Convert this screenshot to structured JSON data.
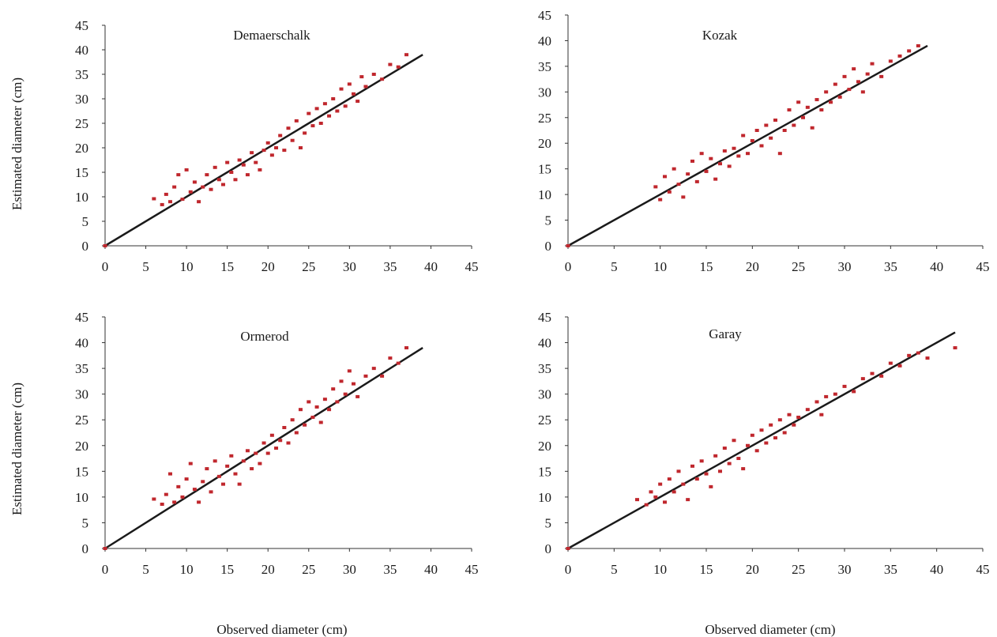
{
  "figure": {
    "y_axis_label": "Estimated diameter (cm)",
    "x_axis_label": "Observed diameter (cm)"
  },
  "chart_data": [
    {
      "type": "scatter",
      "title": "Demaerschalk",
      "xlim": [
        0,
        45
      ],
      "ylim": [
        0,
        45
      ],
      "xticks": [
        0,
        5,
        10,
        15,
        20,
        25,
        30,
        35,
        40,
        45
      ],
      "yticks": [
        0,
        5,
        10,
        15,
        20,
        25,
        30,
        35,
        40,
        45
      ],
      "grid": false,
      "colors": {
        "points": "#c0272d",
        "line": "#1a1a1a"
      },
      "series": [
        {
          "kind": "points",
          "points": [
            [
              0,
              0
            ],
            [
              6.0,
              9.6
            ],
            [
              7.0,
              8.4
            ],
            [
              7.5,
              10.5
            ],
            [
              8.0,
              9.0
            ],
            [
              8.5,
              12.0
            ],
            [
              9.0,
              14.5
            ],
            [
              9.5,
              9.5
            ],
            [
              10.0,
              15.5
            ],
            [
              10.5,
              11.0
            ],
            [
              11.0,
              13.0
            ],
            [
              11.5,
              9.0
            ],
            [
              12.0,
              12.0
            ],
            [
              12.5,
              14.5
            ],
            [
              13.0,
              11.5
            ],
            [
              13.5,
              16.0
            ],
            [
              14.0,
              13.5
            ],
            [
              14.5,
              12.5
            ],
            [
              15.0,
              17.0
            ],
            [
              15.5,
              15.0
            ],
            [
              16.0,
              13.5
            ],
            [
              16.5,
              17.5
            ],
            [
              17.0,
              16.5
            ],
            [
              17.5,
              14.5
            ],
            [
              18.0,
              19.0
            ],
            [
              18.5,
              17.0
            ],
            [
              19.0,
              15.5
            ],
            [
              19.5,
              19.5
            ],
            [
              20.0,
              21.0
            ],
            [
              20.5,
              18.5
            ],
            [
              21.0,
              20.0
            ],
            [
              21.5,
              22.5
            ],
            [
              22.0,
              19.5
            ],
            [
              22.5,
              24.0
            ],
            [
              23.0,
              21.5
            ],
            [
              23.5,
              25.5
            ],
            [
              24.0,
              20.0
            ],
            [
              24.5,
              23.0
            ],
            [
              25.0,
              27.0
            ],
            [
              25.5,
              24.5
            ],
            [
              26.0,
              28.0
            ],
            [
              26.5,
              25.0
            ],
            [
              27.0,
              29.0
            ],
            [
              27.5,
              26.5
            ],
            [
              28.0,
              30.0
            ],
            [
              28.5,
              27.5
            ],
            [
              29.0,
              32.0
            ],
            [
              29.5,
              28.5
            ],
            [
              30.0,
              33.0
            ],
            [
              30.5,
              31.0
            ],
            [
              31.0,
              29.5
            ],
            [
              31.5,
              34.5
            ],
            [
              32.0,
              32.5
            ],
            [
              33.0,
              35.0
            ],
            [
              34.0,
              34.0
            ],
            [
              35.0,
              37.0
            ],
            [
              36.0,
              36.5
            ],
            [
              37.0,
              39.0
            ]
          ]
        },
        {
          "kind": "line",
          "points": [
            [
              0,
              0
            ],
            [
              39,
              39
            ]
          ]
        }
      ]
    },
    {
      "type": "scatter",
      "title": "Kozak",
      "xlim": [
        0,
        45
      ],
      "ylim": [
        0,
        45
      ],
      "xticks": [
        0,
        5,
        10,
        15,
        20,
        25,
        30,
        35,
        40,
        45
      ],
      "yticks": [
        0,
        5,
        10,
        15,
        20,
        25,
        30,
        35,
        40,
        45
      ],
      "grid": false,
      "colors": {
        "points": "#c0272d",
        "line": "#1a1a1a"
      },
      "series": [
        {
          "kind": "points",
          "points": [
            [
              0,
              0
            ],
            [
              9.5,
              11.5
            ],
            [
              10.0,
              9.0
            ],
            [
              10.5,
              13.5
            ],
            [
              11.0,
              10.5
            ],
            [
              11.5,
              15.0
            ],
            [
              12.0,
              12.0
            ],
            [
              12.5,
              9.5
            ],
            [
              13.0,
              14.0
            ],
            [
              13.5,
              16.5
            ],
            [
              14.0,
              12.5
            ],
            [
              14.5,
              18.0
            ],
            [
              15.0,
              14.5
            ],
            [
              15.5,
              17.0
            ],
            [
              16.0,
              13.0
            ],
            [
              16.5,
              16.0
            ],
            [
              17.0,
              18.5
            ],
            [
              17.5,
              15.5
            ],
            [
              18.0,
              19.0
            ],
            [
              18.5,
              17.5
            ],
            [
              19.0,
              21.5
            ],
            [
              19.5,
              18.0
            ],
            [
              20.0,
              20.5
            ],
            [
              20.5,
              22.5
            ],
            [
              21.0,
              19.5
            ],
            [
              21.5,
              23.5
            ],
            [
              22.0,
              21.0
            ],
            [
              22.5,
              24.5
            ],
            [
              23.0,
              18.0
            ],
            [
              23.5,
              22.5
            ],
            [
              24.0,
              26.5
            ],
            [
              24.5,
              23.5
            ],
            [
              25.0,
              28.0
            ],
            [
              25.5,
              25.0
            ],
            [
              26.0,
              27.0
            ],
            [
              26.5,
              23.0
            ],
            [
              27.0,
              28.5
            ],
            [
              27.5,
              26.5
            ],
            [
              28.0,
              30.0
            ],
            [
              28.5,
              28.0
            ],
            [
              29.0,
              31.5
            ],
            [
              29.5,
              29.0
            ],
            [
              30.0,
              33.0
            ],
            [
              30.5,
              30.5
            ],
            [
              31.0,
              34.5
            ],
            [
              31.5,
              32.0
            ],
            [
              32.0,
              30.0
            ],
            [
              32.5,
              33.5
            ],
            [
              33.0,
              35.5
            ],
            [
              34.0,
              33.0
            ],
            [
              35.0,
              36.0
            ],
            [
              36.0,
              37.0
            ],
            [
              37.0,
              38.0
            ],
            [
              38.0,
              39.0
            ]
          ]
        },
        {
          "kind": "line",
          "points": [
            [
              0,
              0
            ],
            [
              39,
              39
            ]
          ]
        }
      ]
    },
    {
      "type": "scatter",
      "title": "Ormerod",
      "xlim": [
        0,
        45
      ],
      "ylim": [
        0,
        45
      ],
      "xticks": [
        0,
        5,
        10,
        15,
        20,
        25,
        30,
        35,
        40,
        45
      ],
      "yticks": [
        0,
        5,
        10,
        15,
        20,
        25,
        30,
        35,
        40,
        45
      ],
      "grid": false,
      "colors": {
        "points": "#c0272d",
        "line": "#1a1a1a"
      },
      "series": [
        {
          "kind": "points",
          "points": [
            [
              0,
              0
            ],
            [
              6.0,
              9.6
            ],
            [
              7.0,
              8.6
            ],
            [
              7.5,
              10.5
            ],
            [
              8.0,
              14.5
            ],
            [
              8.5,
              9.0
            ],
            [
              9.0,
              12.0
            ],
            [
              9.5,
              10.0
            ],
            [
              10.0,
              13.5
            ],
            [
              10.5,
              16.5
            ],
            [
              11.0,
              11.5
            ],
            [
              11.5,
              9.0
            ],
            [
              12.0,
              13.0
            ],
            [
              12.5,
              15.5
            ],
            [
              13.0,
              11.0
            ],
            [
              13.5,
              17.0
            ],
            [
              14.0,
              14.0
            ],
            [
              14.5,
              12.5
            ],
            [
              15.0,
              16.0
            ],
            [
              15.5,
              18.0
            ],
            [
              16.0,
              14.5
            ],
            [
              16.5,
              12.5
            ],
            [
              17.0,
              17.0
            ],
            [
              17.5,
              19.0
            ],
            [
              18.0,
              15.5
            ],
            [
              18.5,
              18.5
            ],
            [
              19.0,
              16.5
            ],
            [
              19.5,
              20.5
            ],
            [
              20.0,
              18.5
            ],
            [
              20.5,
              22.0
            ],
            [
              21.0,
              19.5
            ],
            [
              21.5,
              21.0
            ],
            [
              22.0,
              23.5
            ],
            [
              22.5,
              20.5
            ],
            [
              23.0,
              25.0
            ],
            [
              23.5,
              22.5
            ],
            [
              24.0,
              27.0
            ],
            [
              24.5,
              24.0
            ],
            [
              25.0,
              28.5
            ],
            [
              25.5,
              25.5
            ],
            [
              26.0,
              27.5
            ],
            [
              26.5,
              24.5
            ],
            [
              27.0,
              29.0
            ],
            [
              27.5,
              27.0
            ],
            [
              28.0,
              31.0
            ],
            [
              28.5,
              28.5
            ],
            [
              29.0,
              32.5
            ],
            [
              29.5,
              30.0
            ],
            [
              30.0,
              34.5
            ],
            [
              30.5,
              32.0
            ],
            [
              31.0,
              29.5
            ],
            [
              32.0,
              33.5
            ],
            [
              33.0,
              35.0
            ],
            [
              34.0,
              33.5
            ],
            [
              35.0,
              37.0
            ],
            [
              36.0,
              36.0
            ],
            [
              37.0,
              39.0
            ]
          ]
        },
        {
          "kind": "line",
          "points": [
            [
              0,
              0
            ],
            [
              39,
              39
            ]
          ]
        }
      ]
    },
    {
      "type": "scatter",
      "title": "Garay",
      "xlim": [
        0,
        45
      ],
      "ylim": [
        0,
        45
      ],
      "xticks": [
        0,
        5,
        10,
        15,
        20,
        25,
        30,
        35,
        40,
        45
      ],
      "yticks": [
        0,
        5,
        10,
        15,
        20,
        25,
        30,
        35,
        40,
        45
      ],
      "grid": false,
      "colors": {
        "points": "#c0272d",
        "line": "#1a1a1a"
      },
      "series": [
        {
          "kind": "points",
          "points": [
            [
              0,
              0
            ],
            [
              7.5,
              9.5
            ],
            [
              8.5,
              8.5
            ],
            [
              9.0,
              11.0
            ],
            [
              9.5,
              10.0
            ],
            [
              10.0,
              12.5
            ],
            [
              10.5,
              9.0
            ],
            [
              11.0,
              13.5
            ],
            [
              11.5,
              11.0
            ],
            [
              12.0,
              15.0
            ],
            [
              12.5,
              12.5
            ],
            [
              13.0,
              9.5
            ],
            [
              13.5,
              16.0
            ],
            [
              14.0,
              13.5
            ],
            [
              14.5,
              17.0
            ],
            [
              15.0,
              14.5
            ],
            [
              15.5,
              12.0
            ],
            [
              16.0,
              18.0
            ],
            [
              16.5,
              15.0
            ],
            [
              17.0,
              19.5
            ],
            [
              17.5,
              16.5
            ],
            [
              18.0,
              21.0
            ],
            [
              18.5,
              17.5
            ],
            [
              19.0,
              15.5
            ],
            [
              19.5,
              20.0
            ],
            [
              20.0,
              22.0
            ],
            [
              20.5,
              19.0
            ],
            [
              21.0,
              23.0
            ],
            [
              21.5,
              20.5
            ],
            [
              22.0,
              24.0
            ],
            [
              22.5,
              21.5
            ],
            [
              23.0,
              25.0
            ],
            [
              23.5,
              22.5
            ],
            [
              24.0,
              26.0
            ],
            [
              24.5,
              24.0
            ],
            [
              25.0,
              25.5
            ],
            [
              26.0,
              27.0
            ],
            [
              27.0,
              28.5
            ],
            [
              27.5,
              26.0
            ],
            [
              28.0,
              29.5
            ],
            [
              29.0,
              30.0
            ],
            [
              30.0,
              31.5
            ],
            [
              31.0,
              30.5
            ],
            [
              32.0,
              33.0
            ],
            [
              33.0,
              34.0
            ],
            [
              34.0,
              33.5
            ],
            [
              35.0,
              36.0
            ],
            [
              36.0,
              35.5
            ],
            [
              37.0,
              37.5
            ],
            [
              38.0,
              38.0
            ],
            [
              39.0,
              37.0
            ],
            [
              42.0,
              39.0
            ]
          ]
        },
        {
          "kind": "line",
          "points": [
            [
              0,
              0
            ],
            [
              42,
              42
            ]
          ]
        }
      ]
    }
  ]
}
